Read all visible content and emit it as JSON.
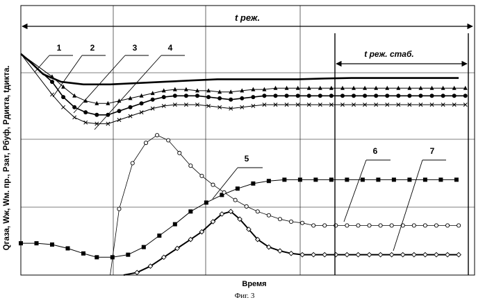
{
  "chart_data": {
    "type": "line",
    "title": "",
    "xlabel": "Время",
    "ylabel": "Qгаза, Wж, Wм. пр., Pзат, Pбуф, Pдикта, tдикта.",
    "caption": "Фиг. 3",
    "grid": true,
    "xlim": [
      0,
      100
    ],
    "ylim": [
      0,
      100
    ],
    "annotations": {
      "regime": "t реж.",
      "regime_stable": "t реж. стаб."
    },
    "series_labels": [
      "1",
      "2",
      "3",
      "4",
      "5",
      "6",
      "7"
    ],
    "series": [
      {
        "label": "1",
        "marker": "none",
        "width": 2.6,
        "points": [
          [
            0,
            87
          ],
          [
            2,
            84
          ],
          [
            5,
            79
          ],
          [
            9,
            76
          ],
          [
            14,
            75
          ],
          [
            20,
            75
          ],
          [
            26,
            75.5
          ],
          [
            32,
            76
          ],
          [
            38,
            76.5
          ],
          [
            44,
            77
          ],
          [
            50,
            77
          ],
          [
            56,
            77
          ],
          [
            62,
            77
          ],
          [
            68,
            77.3
          ],
          [
            74,
            77.5
          ],
          [
            80,
            77.5
          ],
          [
            86,
            77.5
          ],
          [
            92,
            77.5
          ],
          [
            98,
            77.5
          ]
        ]
      },
      {
        "label": "2",
        "marker": "triangle",
        "width": 1.0,
        "points": [
          [
            0,
            87
          ],
          [
            7,
            78
          ],
          [
            9.5,
            74
          ],
          [
            12,
            70.5
          ],
          [
            14.5,
            68.5
          ],
          [
            17,
            67.5
          ],
          [
            19.5,
            67.5
          ],
          [
            22,
            68.5
          ],
          [
            24.5,
            69.5
          ],
          [
            27,
            70.5
          ],
          [
            29.5,
            71.5
          ],
          [
            32,
            72.5
          ],
          [
            34.5,
            73
          ],
          [
            37,
            73
          ],
          [
            39.5,
            72.5
          ],
          [
            42,
            72.5
          ],
          [
            44.5,
            72
          ],
          [
            47,
            72
          ],
          [
            49.5,
            72.5
          ],
          [
            52,
            73
          ],
          [
            54.5,
            73
          ],
          [
            57,
            73.5
          ],
          [
            59.5,
            73.5
          ],
          [
            62,
            73.5
          ],
          [
            64.5,
            73.5
          ],
          [
            67,
            73.5
          ],
          [
            69.5,
            73.5
          ],
          [
            72,
            73.5
          ],
          [
            74.5,
            73.5
          ],
          [
            77,
            73.5
          ],
          [
            79.5,
            73.5
          ],
          [
            82,
            73.5
          ],
          [
            84.5,
            73.5
          ],
          [
            87,
            73.5
          ],
          [
            89.5,
            73.5
          ],
          [
            92,
            73.5
          ],
          [
            94.5,
            73.5
          ],
          [
            97,
            73.5
          ],
          [
            99.5,
            73.5
          ]
        ]
      },
      {
        "label": "3",
        "marker": "circle-filled",
        "width": 1.6,
        "points": [
          [
            0,
            87
          ],
          [
            7,
            76
          ],
          [
            9.5,
            70
          ],
          [
            12,
            66
          ],
          [
            14.5,
            64
          ],
          [
            17,
            63
          ],
          [
            19.5,
            63
          ],
          [
            22,
            64.5
          ],
          [
            24.5,
            66
          ],
          [
            27,
            67.5
          ],
          [
            29.5,
            69
          ],
          [
            32,
            70
          ],
          [
            34.5,
            70.5
          ],
          [
            37,
            70.5
          ],
          [
            39.5,
            70.5
          ],
          [
            42,
            70
          ],
          [
            44.5,
            69.5
          ],
          [
            47,
            69
          ],
          [
            49.5,
            69.5
          ],
          [
            52,
            70
          ],
          [
            54.5,
            70.5
          ],
          [
            57,
            70.5
          ],
          [
            59.5,
            70.5
          ],
          [
            62,
            70.5
          ],
          [
            64.5,
            70.5
          ],
          [
            67,
            70.5
          ],
          [
            69.5,
            70.5
          ],
          [
            72,
            70.5
          ],
          [
            74.5,
            70.5
          ],
          [
            77,
            70.5
          ],
          [
            79.5,
            70.5
          ],
          [
            82,
            70.5
          ],
          [
            84.5,
            70.5
          ],
          [
            87,
            70.5
          ],
          [
            89.5,
            70.5
          ],
          [
            92,
            70.5
          ],
          [
            94.5,
            70.5
          ],
          [
            97,
            70.5
          ],
          [
            99.5,
            70.5
          ]
        ]
      },
      {
        "label": "4",
        "marker": "cross",
        "width": 1.0,
        "points": [
          [
            0,
            87
          ],
          [
            7,
            71
          ],
          [
            9.5,
            66
          ],
          [
            12,
            62
          ],
          [
            14.5,
            60
          ],
          [
            17,
            59.5
          ],
          [
            19.5,
            59.5
          ],
          [
            22,
            61
          ],
          [
            24.5,
            62.5
          ],
          [
            27,
            64
          ],
          [
            29.5,
            65.5
          ],
          [
            32,
            66.5
          ],
          [
            34.5,
            67
          ],
          [
            37,
            67
          ],
          [
            39.5,
            67
          ],
          [
            42,
            66.5
          ],
          [
            44.5,
            66
          ],
          [
            47,
            65.5
          ],
          [
            49.5,
            66
          ],
          [
            52,
            66.5
          ],
          [
            54.5,
            67
          ],
          [
            57,
            67
          ],
          [
            59.5,
            67
          ],
          [
            62,
            67
          ],
          [
            64.5,
            67
          ],
          [
            67,
            67
          ],
          [
            69.5,
            67
          ],
          [
            72,
            67
          ],
          [
            74.5,
            67
          ],
          [
            77,
            67
          ],
          [
            79.5,
            67
          ],
          [
            82,
            67
          ],
          [
            84.5,
            67
          ],
          [
            87,
            67
          ],
          [
            89.5,
            67
          ],
          [
            92,
            67
          ],
          [
            94.5,
            67
          ],
          [
            97,
            67
          ],
          [
            99.5,
            67
          ]
        ]
      },
      {
        "label": "5",
        "marker": "square-filled",
        "width": 1.0,
        "points": [
          [
            0,
            12.5
          ],
          [
            3.5,
            12.5
          ],
          [
            7,
            12
          ],
          [
            10.5,
            10.5
          ],
          [
            14,
            8.5
          ],
          [
            17,
            7
          ],
          [
            20.5,
            7
          ],
          [
            24,
            8
          ],
          [
            27.5,
            11
          ],
          [
            31,
            15.5
          ],
          [
            34.5,
            20
          ],
          [
            38,
            25
          ],
          [
            41.5,
            28.5
          ],
          [
            45,
            31.5
          ],
          [
            48.5,
            34
          ],
          [
            52,
            36
          ],
          [
            55.5,
            37
          ],
          [
            59,
            37.5
          ],
          [
            62.5,
            37.5
          ],
          [
            66,
            37.5
          ],
          [
            69.5,
            37.5
          ],
          [
            73,
            37.5
          ],
          [
            76.5,
            37.5
          ],
          [
            80,
            37.5
          ],
          [
            83.5,
            37.5
          ],
          [
            87,
            37.5
          ],
          [
            90.5,
            37.5
          ],
          [
            94,
            37.5
          ],
          [
            97.5,
            37.5
          ]
        ]
      },
      {
        "label": "6",
        "marker": "circle-open",
        "width": 0.8,
        "points": [
          [
            20,
            0
          ],
          [
            22,
            26
          ],
          [
            25,
            44
          ],
          [
            28,
            52
          ],
          [
            30.5,
            55
          ],
          [
            33,
            53
          ],
          [
            35.5,
            48
          ],
          [
            38,
            43
          ],
          [
            40.5,
            39
          ],
          [
            43,
            35.5
          ],
          [
            45.5,
            32.5
          ],
          [
            48,
            29.5
          ],
          [
            50.5,
            27
          ],
          [
            53,
            25
          ],
          [
            55.5,
            23.5
          ],
          [
            58,
            22
          ],
          [
            60.5,
            21
          ],
          [
            63,
            20.5
          ],
          [
            65.5,
            19.5
          ],
          [
            68,
            19.5
          ],
          [
            70.5,
            19.5
          ],
          [
            73,
            19.5
          ],
          [
            75.5,
            19.5
          ],
          [
            78,
            19.5
          ],
          [
            80.5,
            19.5
          ],
          [
            83,
            19.5
          ],
          [
            85.5,
            19.5
          ],
          [
            88,
            19.5
          ],
          [
            90.5,
            19.5
          ],
          [
            93,
            19.5
          ],
          [
            95.5,
            19.5
          ],
          [
            98,
            19.5
          ]
        ]
      },
      {
        "label": "7",
        "marker": "diamond-open",
        "width": 2.0,
        "points": [
          [
            23,
            0
          ],
          [
            26,
            1
          ],
          [
            29,
            3.5
          ],
          [
            32,
            7
          ],
          [
            35,
            10.5
          ],
          [
            38,
            14
          ],
          [
            40.5,
            17
          ],
          [
            43,
            21
          ],
          [
            45,
            24
          ],
          [
            47,
            25
          ],
          [
            49,
            22
          ],
          [
            51,
            18
          ],
          [
            53,
            14
          ],
          [
            55.5,
            11
          ],
          [
            58,
            9.5
          ],
          [
            60.5,
            8.5
          ],
          [
            63,
            8
          ],
          [
            65.5,
            8
          ],
          [
            68,
            8
          ],
          [
            70.5,
            8
          ],
          [
            73,
            8
          ],
          [
            75.5,
            8
          ],
          [
            78,
            8
          ],
          [
            80.5,
            8
          ],
          [
            83,
            8
          ],
          [
            85.5,
            8
          ],
          [
            88,
            8
          ],
          [
            90.5,
            8
          ],
          [
            93,
            8
          ],
          [
            95.5,
            8
          ],
          [
            98,
            8
          ]
        ]
      }
    ]
  }
}
